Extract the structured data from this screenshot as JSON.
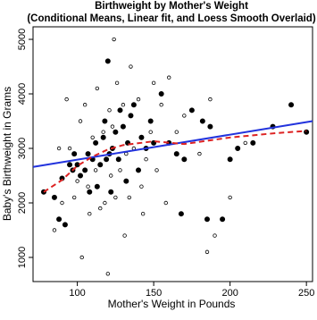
{
  "chart_data": {
    "type": "scatter",
    "title": "Birthweight by Mother's Weight",
    "subtitle": "(Conditional Means, Linear fit, and Loess Smooth Overlaid)",
    "x_label": "Mother's Weight in Pounds",
    "y_label": "Baby's Birthweight in Grams",
    "xlim": [
      71,
      254
    ],
    "ylim": [
      557,
      5230
    ],
    "xticks": [
      100,
      150,
      200,
      250
    ],
    "yticks": [
      1000,
      2000,
      3000,
      4000,
      5000
    ],
    "series": [
      {
        "kind": "points",
        "marker": "open",
        "color": "#000000",
        "x": [
          85,
          88,
          90,
          93,
          95,
          98,
          100,
          102,
          103,
          105,
          107,
          108,
          110,
          112,
          113,
          115,
          117,
          118,
          120,
          121,
          122,
          123,
          124,
          125,
          126,
          128,
          130,
          131,
          132,
          134,
          135,
          137,
          140,
          142,
          143,
          145,
          148,
          150,
          152,
          155,
          158,
          160,
          165,
          170,
          180,
          185,
          187,
          190,
          200,
          210
        ],
        "values": [
          1500,
          3000,
          2000,
          3900,
          3000,
          2100,
          2400,
          3500,
          1000,
          3800,
          2300,
          1800,
          3200,
          2600,
          4100,
          1900,
          3300,
          2000,
          700,
          3700,
          2500,
          3400,
          5000,
          2100,
          4200,
          2600,
          3800,
          1400,
          2900,
          2100,
          4500,
          3000,
          3900,
          2300,
          1800,
          2800,
          3300,
          4200,
          2600,
          3800,
          2000,
          4300,
          3300,
          3600,
          2900,
          1100,
          3900,
          1400,
          2100,
          3100
        ]
      },
      {
        "kind": "points",
        "marker": "filled",
        "color": "#000000",
        "x": [
          78,
          85,
          88,
          90,
          92,
          95,
          97,
          98,
          100,
          102,
          105,
          107,
          108,
          110,
          112,
          113,
          115,
          117,
          118,
          119,
          120,
          121,
          122,
          123,
          125,
          127,
          128,
          130,
          132,
          133,
          135,
          137,
          140,
          142,
          145,
          148,
          150,
          155,
          160,
          165,
          168,
          170,
          175,
          182,
          185,
          187,
          195,
          200,
          205,
          215,
          228,
          240,
          250
        ],
        "values": [
          2200,
          2100,
          1700,
          2450,
          1600,
          2700,
          2600,
          2900,
          2700,
          2500,
          2600,
          2900,
          2200,
          2800,
          3100,
          2300,
          2700,
          3200,
          3500,
          2800,
          4600,
          2900,
          2200,
          3000,
          3300,
          2800,
          3700,
          3400,
          2400,
          3100,
          3600,
          3800,
          2600,
          3200,
          3000,
          3500,
          3100,
          4000,
          3100,
          2900,
          1800,
          2800,
          3700,
          3500,
          1700,
          3400,
          1700,
          2800,
          3000,
          3100,
          3400,
          3800,
          3300
        ]
      },
      {
        "kind": "line",
        "line_style": "solid",
        "color": "#2233dd",
        "x": [
          71,
          254
        ],
        "values": [
          2660,
          3500
        ]
      },
      {
        "kind": "line",
        "line_style": "dashed",
        "color": "#dd2222",
        "x": [
          78,
          90,
          100,
          110,
          120,
          130,
          150,
          170,
          200,
          230,
          250
        ],
        "values": [
          2200,
          2420,
          2680,
          2850,
          2980,
          3060,
          3130,
          3080,
          3200,
          3280,
          3320
        ]
      }
    ]
  }
}
